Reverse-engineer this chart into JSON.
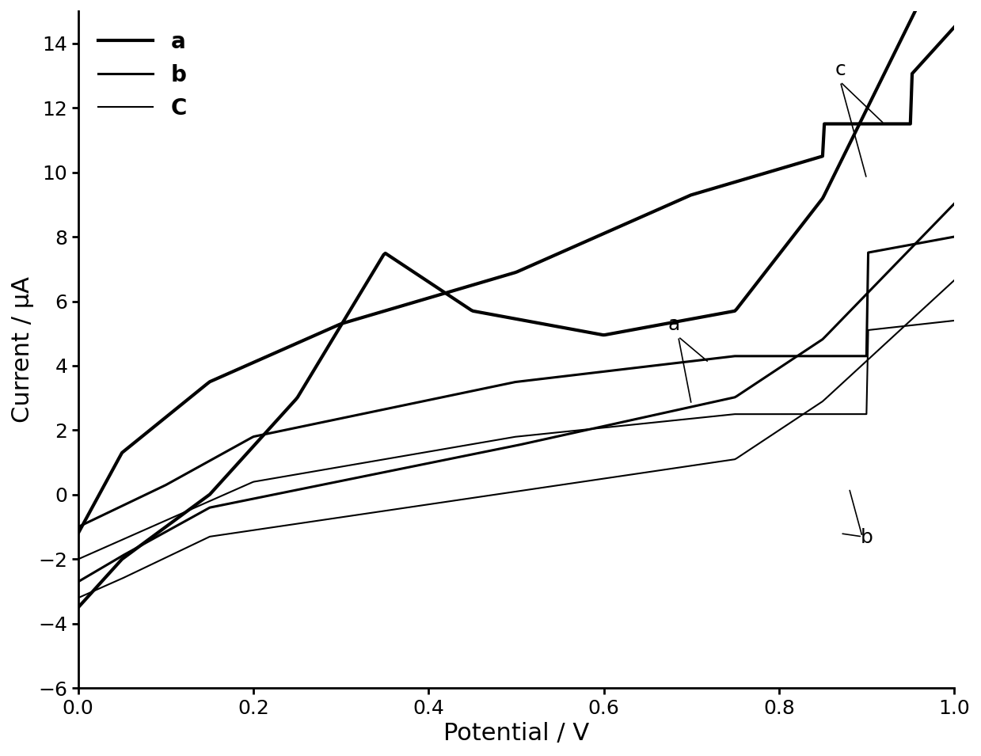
{
  "title": "",
  "xlabel": "Potential / V",
  "ylabel": "Current / μA",
  "xlim": [
    0,
    1.0
  ],
  "ylim": [
    -6,
    15
  ],
  "yticks": [
    -6,
    -4,
    -2,
    0,
    2,
    4,
    6,
    8,
    10,
    12,
    14
  ],
  "xticks": [
    0,
    0.2,
    0.4,
    0.6,
    0.8,
    1.0
  ],
  "legend_labels": [
    "a",
    "b",
    "C"
  ],
  "line_color": "#000000",
  "background_color": "#ffffff",
  "linewidth_thick": 3.0,
  "linewidth_medium": 2.2,
  "linewidth_thin": 1.5
}
